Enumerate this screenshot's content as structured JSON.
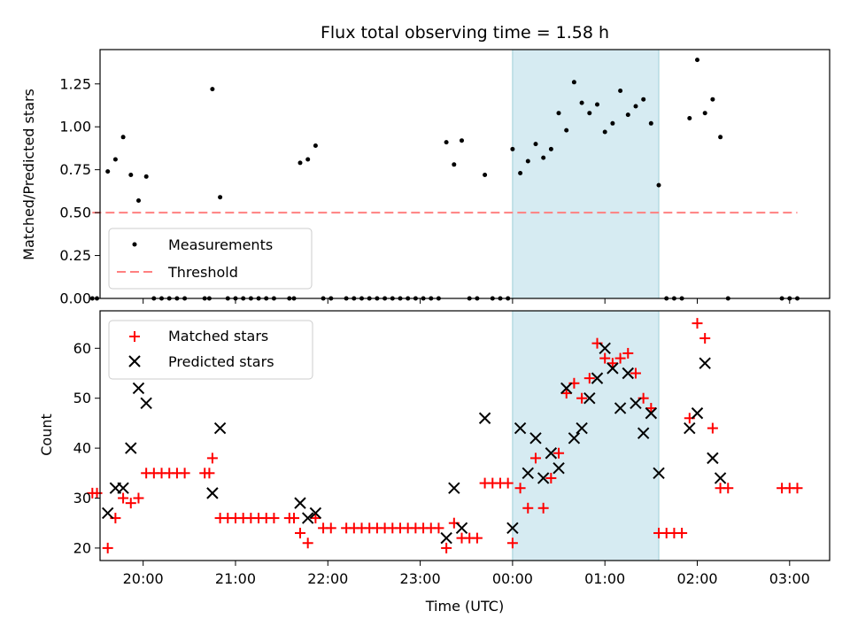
{
  "chart_data": [
    {
      "type": "scatter",
      "title": "Flux total observing time = 1.58 h",
      "xlabel": "",
      "ylabel": "Matched/Predicted stars",
      "xlim": [
        "19:32",
        "03:26"
      ],
      "ylim": [
        0,
        1.45
      ],
      "yticks": [
        0.0,
        0.25,
        0.5,
        0.75,
        1.0,
        1.25
      ],
      "ytick_labels": [
        "0.00",
        "0.25",
        "0.50",
        "0.75",
        "1.00",
        "1.25"
      ],
      "highlight_span": [
        "00:00",
        "01:35"
      ],
      "threshold": {
        "label": "Threshold",
        "value": 0.5,
        "x_start": "19:27",
        "x_end": "03:05",
        "color": "#ff8080"
      },
      "legend_position": "lower-left",
      "series": [
        {
          "name": "Measurements",
          "color": "#000000",
          "marker": "dot",
          "points": [
            [
              "19:27",
              0.0
            ],
            [
              "19:30",
              0.0
            ],
            [
              "19:37",
              0.74
            ],
            [
              "19:42",
              0.81
            ],
            [
              "19:47",
              0.94
            ],
            [
              "19:52",
              0.72
            ],
            [
              "19:57",
              0.57
            ],
            [
              "20:02",
              0.71
            ],
            [
              "20:07",
              0.0
            ],
            [
              "20:12",
              0.0
            ],
            [
              "20:17",
              0.0
            ],
            [
              "20:22",
              0.0
            ],
            [
              "20:27",
              0.0
            ],
            [
              "20:40",
              0.0
            ],
            [
              "20:43",
              0.0
            ],
            [
              "20:45",
              1.22
            ],
            [
              "20:50",
              0.59
            ],
            [
              "20:55",
              0.0
            ],
            [
              "21:00",
              0.0
            ],
            [
              "21:05",
              0.0
            ],
            [
              "21:10",
              0.0
            ],
            [
              "21:15",
              0.0
            ],
            [
              "21:20",
              0.0
            ],
            [
              "21:25",
              0.0
            ],
            [
              "21:35",
              0.0
            ],
            [
              "21:38",
              0.0
            ],
            [
              "21:42",
              0.79
            ],
            [
              "21:47",
              0.81
            ],
            [
              "21:52",
              0.89
            ],
            [
              "21:57",
              0.0
            ],
            [
              "22:02",
              0.0
            ],
            [
              "22:12",
              0.0
            ],
            [
              "22:17",
              0.0
            ],
            [
              "22:22",
              0.0
            ],
            [
              "22:27",
              0.0
            ],
            [
              "22:32",
              0.0
            ],
            [
              "22:37",
              0.0
            ],
            [
              "22:42",
              0.0
            ],
            [
              "22:47",
              0.0
            ],
            [
              "22:52",
              0.0
            ],
            [
              "22:57",
              0.0
            ],
            [
              "23:02",
              0.0
            ],
            [
              "23:07",
              0.0
            ],
            [
              "23:12",
              0.0
            ],
            [
              "23:17",
              0.91
            ],
            [
              "23:22",
              0.78
            ],
            [
              "23:27",
              0.92
            ],
            [
              "23:32",
              0.0
            ],
            [
              "23:37",
              0.0
            ],
            [
              "23:42",
              0.72
            ],
            [
              "23:47",
              0.0
            ],
            [
              "23:52",
              0.0
            ],
            [
              "23:57",
              0.0
            ],
            [
              "00:00",
              0.87
            ],
            [
              "00:05",
              0.73
            ],
            [
              "00:10",
              0.8
            ],
            [
              "00:15",
              0.9
            ],
            [
              "00:20",
              0.82
            ],
            [
              "00:25",
              0.87
            ],
            [
              "00:30",
              1.08
            ],
            [
              "00:35",
              0.98
            ],
            [
              "00:40",
              1.26
            ],
            [
              "00:45",
              1.14
            ],
            [
              "00:50",
              1.08
            ],
            [
              "00:55",
              1.13
            ],
            [
              "01:00",
              0.97
            ],
            [
              "01:05",
              1.02
            ],
            [
              "01:10",
              1.21
            ],
            [
              "01:15",
              1.07
            ],
            [
              "01:20",
              1.12
            ],
            [
              "01:25",
              1.16
            ],
            [
              "01:30",
              1.02
            ],
            [
              "01:35",
              0.66
            ],
            [
              "01:40",
              0.0
            ],
            [
              "01:45",
              0.0
            ],
            [
              "01:50",
              0.0
            ],
            [
              "01:55",
              1.05
            ],
            [
              "02:00",
              1.39
            ],
            [
              "02:05",
              1.08
            ],
            [
              "02:10",
              1.16
            ],
            [
              "02:15",
              0.94
            ],
            [
              "02:20",
              0.0
            ],
            [
              "02:55",
              0.0
            ],
            [
              "03:00",
              0.0
            ],
            [
              "03:05",
              0.0
            ]
          ]
        }
      ]
    },
    {
      "type": "scatter",
      "title": "",
      "xlabel": "Time (UTC)",
      "ylabel": "Count",
      "xlim": [
        "19:32",
        "03:26"
      ],
      "ylim": [
        17.5,
        67.5
      ],
      "yticks": [
        20,
        30,
        40,
        50,
        60
      ],
      "ytick_labels": [
        "20",
        "30",
        "40",
        "50",
        "60"
      ],
      "xticks": [
        "20:00",
        "21:00",
        "22:00",
        "23:00",
        "00:00",
        "01:00",
        "02:00",
        "03:00"
      ],
      "xtick_labels": [
        "20:00",
        "21:00",
        "22:00",
        "23:00",
        "00:00",
        "01:00",
        "02:00",
        "03:00"
      ],
      "highlight_span": [
        "00:00",
        "01:35"
      ],
      "legend_position": "upper-left",
      "series": [
        {
          "name": "Matched stars",
          "color": "#ff0000",
          "marker": "plus",
          "points": [
            [
              "19:27",
              31
            ],
            [
              "19:30",
              31
            ],
            [
              "19:37",
              20
            ],
            [
              "19:42",
              26
            ],
            [
              "19:47",
              30
            ],
            [
              "19:52",
              29
            ],
            [
              "19:57",
              30
            ],
            [
              "20:02",
              35
            ],
            [
              "20:07",
              35
            ],
            [
              "20:12",
              35
            ],
            [
              "20:17",
              35
            ],
            [
              "20:22",
              35
            ],
            [
              "20:27",
              35
            ],
            [
              "20:40",
              35
            ],
            [
              "20:43",
              35
            ],
            [
              "20:45",
              38
            ],
            [
              "20:50",
              26
            ],
            [
              "20:55",
              26
            ],
            [
              "21:00",
              26
            ],
            [
              "21:05",
              26
            ],
            [
              "21:10",
              26
            ],
            [
              "21:15",
              26
            ],
            [
              "21:20",
              26
            ],
            [
              "21:25",
              26
            ],
            [
              "21:35",
              26
            ],
            [
              "21:38",
              26
            ],
            [
              "21:42",
              23
            ],
            [
              "21:47",
              21
            ],
            [
              "21:52",
              26
            ],
            [
              "21:57",
              24
            ],
            [
              "22:02",
              24
            ],
            [
              "22:12",
              24
            ],
            [
              "22:17",
              24
            ],
            [
              "22:22",
              24
            ],
            [
              "22:27",
              24
            ],
            [
              "22:32",
              24
            ],
            [
              "22:37",
              24
            ],
            [
              "22:42",
              24
            ],
            [
              "22:47",
              24
            ],
            [
              "22:52",
              24
            ],
            [
              "22:57",
              24
            ],
            [
              "23:02",
              24
            ],
            [
              "23:07",
              24
            ],
            [
              "23:12",
              24
            ],
            [
              "23:17",
              20
            ],
            [
              "23:22",
              25
            ],
            [
              "23:27",
              22
            ],
            [
              "23:32",
              22
            ],
            [
              "23:37",
              22
            ],
            [
              "23:42",
              33
            ],
            [
              "23:47",
              33
            ],
            [
              "23:52",
              33
            ],
            [
              "23:57",
              33
            ],
            [
              "00:00",
              21
            ],
            [
              "00:05",
              32
            ],
            [
              "00:10",
              28
            ],
            [
              "00:15",
              38
            ],
            [
              "00:20",
              28
            ],
            [
              "00:25",
              34
            ],
            [
              "00:30",
              39
            ],
            [
              "00:35",
              51
            ],
            [
              "00:40",
              53
            ],
            [
              "00:45",
              50
            ],
            [
              "00:50",
              54
            ],
            [
              "00:55",
              61
            ],
            [
              "01:00",
              58
            ],
            [
              "01:05",
              57
            ],
            [
              "01:10",
              58
            ],
            [
              "01:15",
              59
            ],
            [
              "01:20",
              55
            ],
            [
              "01:25",
              50
            ],
            [
              "01:30",
              48
            ],
            [
              "01:35",
              23
            ],
            [
              "01:40",
              23
            ],
            [
              "01:45",
              23
            ],
            [
              "01:50",
              23
            ],
            [
              "01:55",
              46
            ],
            [
              "02:00",
              65
            ],
            [
              "02:05",
              62
            ],
            [
              "02:10",
              44
            ],
            [
              "02:15",
              32
            ],
            [
              "02:20",
              32
            ],
            [
              "02:55",
              32
            ],
            [
              "03:00",
              32
            ],
            [
              "03:05",
              32
            ]
          ]
        },
        {
          "name": "Predicted stars",
          "color": "#000000",
          "marker": "x",
          "points": [
            [
              "19:37",
              27
            ],
            [
              "19:42",
              32
            ],
            [
              "19:47",
              32
            ],
            [
              "19:52",
              40
            ],
            [
              "19:57",
              52
            ],
            [
              "20:02",
              49
            ],
            [
              "20:45",
              31
            ],
            [
              "20:50",
              44
            ],
            [
              "21:42",
              29
            ],
            [
              "21:47",
              26
            ],
            [
              "21:52",
              27
            ],
            [
              "23:17",
              22
            ],
            [
              "23:22",
              32
            ],
            [
              "23:27",
              24
            ],
            [
              "23:42",
              46
            ],
            [
              "00:00",
              24
            ],
            [
              "00:05",
              44
            ],
            [
              "00:10",
              35
            ],
            [
              "00:15",
              42
            ],
            [
              "00:20",
              34
            ],
            [
              "00:25",
              39
            ],
            [
              "00:30",
              36
            ],
            [
              "00:35",
              52
            ],
            [
              "00:40",
              42
            ],
            [
              "00:45",
              44
            ],
            [
              "00:50",
              50
            ],
            [
              "00:55",
              54
            ],
            [
              "01:00",
              60
            ],
            [
              "01:05",
              56
            ],
            [
              "01:10",
              48
            ],
            [
              "01:15",
              55
            ],
            [
              "01:20",
              49
            ],
            [
              "01:25",
              43
            ],
            [
              "01:30",
              47
            ],
            [
              "01:35",
              35
            ],
            [
              "01:55",
              44
            ],
            [
              "02:00",
              47
            ],
            [
              "02:05",
              57
            ],
            [
              "02:10",
              38
            ],
            [
              "02:15",
              34
            ]
          ]
        }
      ]
    }
  ]
}
